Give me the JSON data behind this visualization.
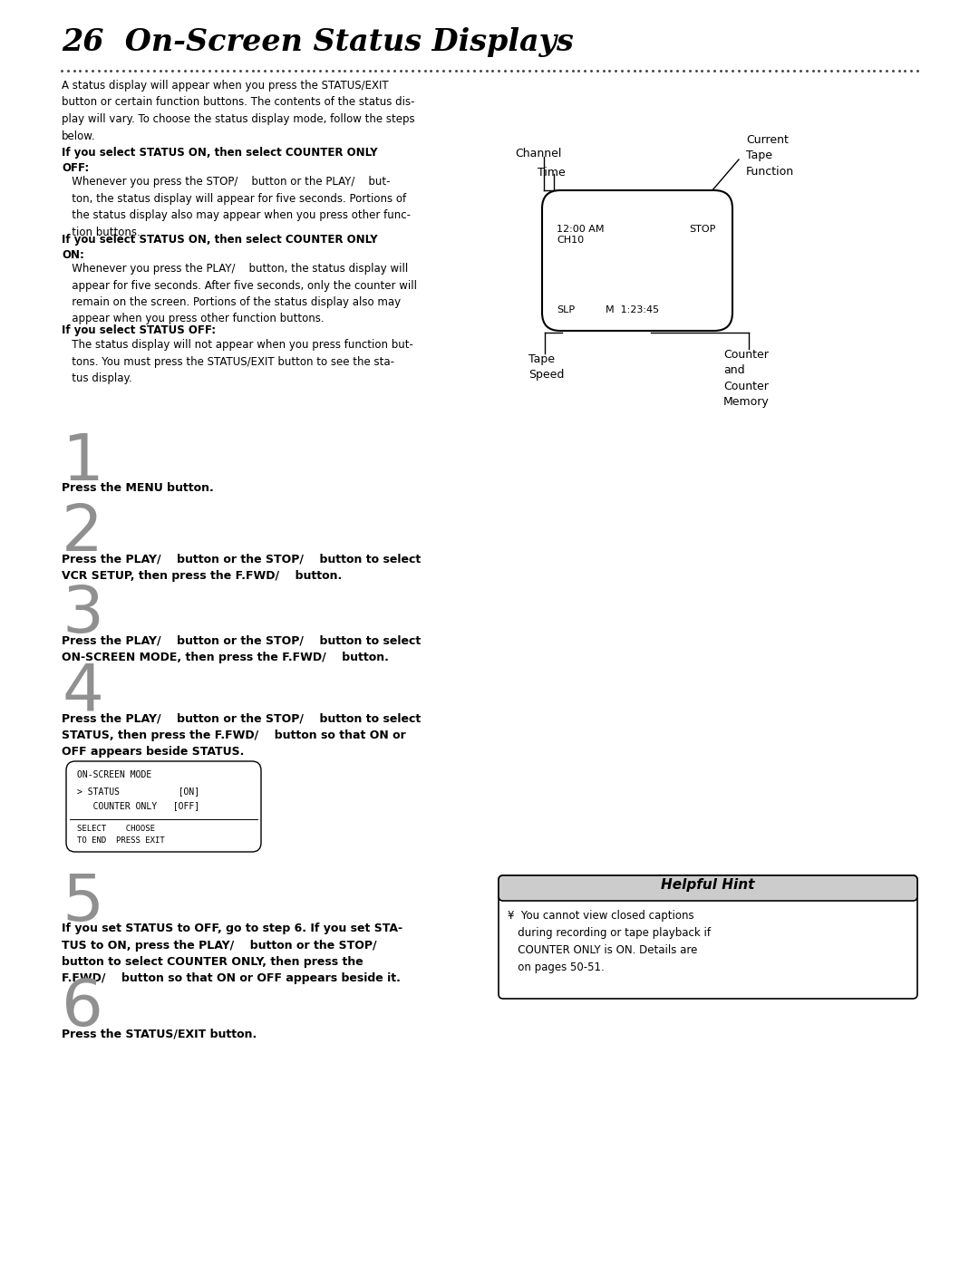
{
  "title": "26  On-Screen Status Displays",
  "bg_color": "#ffffff",
  "text_color": "#000000",
  "intro_text": "A status display will appear when you press the STATUS/EXIT\nbutton or certain function buttons. The contents of the status dis-\nplay will vary. To choose the status display mode, follow the steps\nbelow.",
  "section1_bold": "If you select STATUS ON, then select COUNTER ONLY\nOFF:",
  "section1_text": "   Whenever you press the STOP/    button or the PLAY/    but-\n   ton, the status display will appear for five seconds. Portions of\n   the status display also may appear when you press other func-\n   tion buttons.",
  "section2_bold": "If you select STATUS ON, then select COUNTER ONLY\nON:",
  "section2_text": "   Whenever you press the PLAY/    button, the status display will\n   appear for five seconds. After five seconds, only the counter will\n   remain on the screen. Portions of the status display also may\n   appear when you press other function buttons.",
  "section3_bold": "If you select STATUS OFF:",
  "section3_text": "   The status display will not appear when you press function but-\n   tons. You must press the STATUS/EXIT button to see the sta-\n   tus display.",
  "step1_num": "1",
  "step1_text": "Press the MENU button.",
  "step2_num": "2",
  "step2_text": "Press the PLAY/    button or the STOP/    button to select\nVCR SETUP, then press the F.FWD/    button.",
  "step3_num": "3",
  "step3_text": "Press the PLAY/    button or the STOP/    button to select\nON-SCREEN MODE, then press the F.FWD/    button.",
  "step4_num": "4",
  "step4_text": "Press the PLAY/    button or the STOP/    button to select\nSTATUS, then press the F.FWD/    button so that ON or\nOFF appears beside STATUS.",
  "menu_title": "ON-SCREEN MODE",
  "menu_line1": "> STATUS           [ON]",
  "menu_line2": "   COUNTER ONLY   [OFF]",
  "menu_footer1": "SELECT    CHOOSE",
  "menu_footer2": "TO END  PRESS EXIT",
  "step5_num": "5",
  "step5_text": "If you set STATUS to OFF, go to step 6. If you set STA-\nTUS to ON, press the PLAY/    button or the STOP/\nbutton to select COUNTER ONLY, then press the\nF.FWD/    button so that ON or OFF appears beside it.",
  "step6_num": "6",
  "step6_text": "Press the STATUS/EXIT button.",
  "hint_title": "Helpful Hint",
  "hint_text": "¥  You cannot view closed captions\n   during recording or tape playback if\n   COUNTER ONLY is ON. Details are\n   on pages 50-51.",
  "diagram_channel": "Channel",
  "diagram_time": "Time",
  "diagram_current": "Current\nTape\nFunction",
  "diagram_content_tl": "12:00 AM\nCH10",
  "diagram_content_tr": "STOP",
  "diagram_content_bl": "SLP",
  "diagram_content_br": "M  1:23:45",
  "diagram_tape_speed": "Tape\nSpeed",
  "diagram_counter": "Counter\nand\nCounter\nMemory"
}
